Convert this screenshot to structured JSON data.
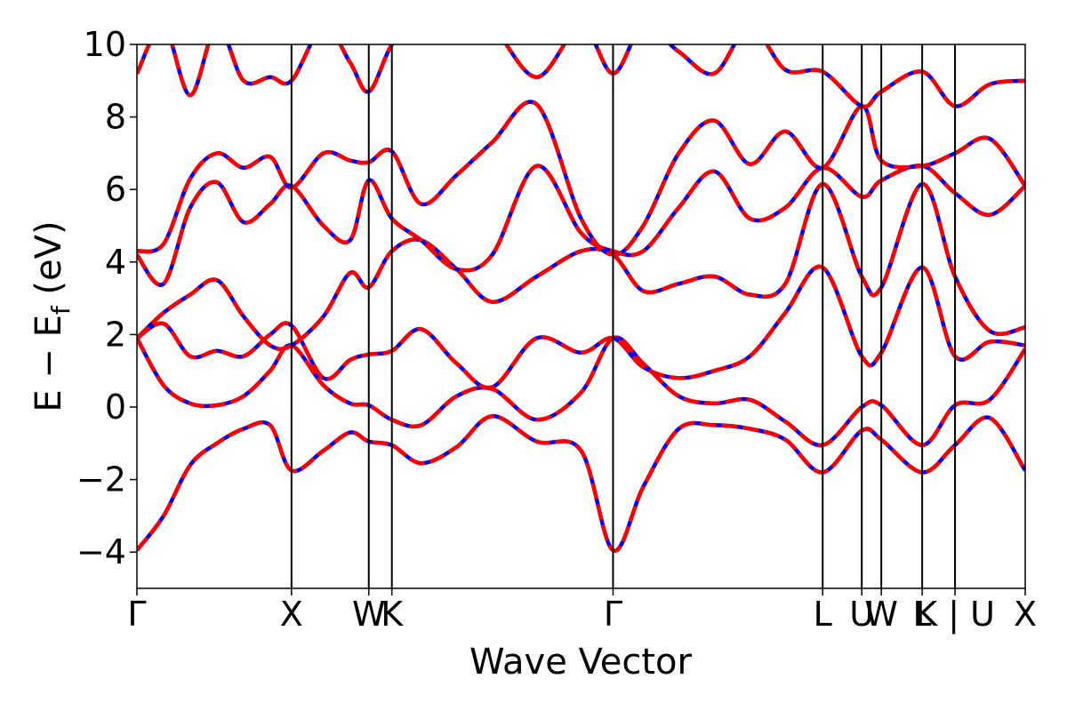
{
  "chart_data": {
    "type": "line",
    "xlabel": "Wave Vector",
    "ylabel_main": "E − E",
    "ylabel_sub": "f",
    "ylabel_unit": " (eV)",
    "ylim": [
      -5,
      10
    ],
    "yticks": [
      -4,
      -2,
      0,
      2,
      4,
      6,
      8,
      10
    ],
    "yticks_labels": [
      "−4",
      "−2",
      "0",
      "2",
      "4",
      "6",
      "8",
      "10"
    ],
    "xlim": [
      0,
      1
    ],
    "kpoints": [
      {
        "label": "Γ",
        "x": 0.0
      },
      {
        "label": "X",
        "x": 0.174
      },
      {
        "label": "W",
        "x": 0.261
      },
      {
        "label": "K",
        "x": 0.287
      },
      {
        "label": "Γ",
        "x": 0.536
      },
      {
        "label": "L",
        "x": 0.772
      },
      {
        "label": "U",
        "x": 0.816
      },
      {
        "label": "W",
        "x": 0.838
      },
      {
        "label": "L",
        "x": 0.884
      },
      {
        "label": "K | U",
        "x": 0.921
      },
      {
        "label": "X",
        "x": 1.0
      }
    ],
    "style": {
      "line_color_a": "#ff0000",
      "line_color_b": "#0000ff"
    },
    "bands": [
      {
        "x": [
          0,
          0.03,
          0.06,
          0.09,
          0.12,
          0.15,
          0.174,
          0.21,
          0.24,
          0.261,
          0.287,
          0.32,
          0.36,
          0.4,
          0.45,
          0.5,
          0.536,
          0.57,
          0.61,
          0.65,
          0.69,
          0.73,
          0.772,
          0.816,
          0.838,
          0.884,
          0.921,
          0.96,
          1.0
        ],
        "y": [
          -3.95,
          -3.0,
          -1.6,
          -1.0,
          -0.6,
          -0.5,
          -1.75,
          -1.2,
          -0.7,
          -0.95,
          -1.05,
          -1.55,
          -1.1,
          -0.25,
          -0.95,
          -1.2,
          -3.95,
          -2.2,
          -0.6,
          -0.5,
          -0.6,
          -0.9,
          -1.8,
          -0.65,
          -0.9,
          -1.8,
          -1.05,
          -0.3,
          -1.75
        ]
      },
      {
        "x": [
          0,
          0.03,
          0.06,
          0.09,
          0.12,
          0.15,
          0.174,
          0.21,
          0.24,
          0.261,
          0.287,
          0.32,
          0.36,
          0.4,
          0.45,
          0.5,
          0.536,
          0.57,
          0.61,
          0.65,
          0.69,
          0.73,
          0.772,
          0.816,
          0.838,
          0.884,
          0.921,
          0.96,
          1.0
        ],
        "y": [
          1.9,
          0.6,
          0.1,
          0.05,
          0.3,
          1.0,
          1.7,
          0.6,
          0.1,
          0.05,
          -0.35,
          -0.5,
          0.3,
          0.5,
          -0.35,
          0.4,
          1.9,
          1.2,
          0.3,
          0.1,
          0.2,
          -0.4,
          -1.05,
          0.0,
          0.05,
          -1.05,
          0.05,
          0.2,
          1.6
        ]
      },
      {
        "x": [
          0,
          0.03,
          0.06,
          0.09,
          0.12,
          0.15,
          0.174,
          0.21,
          0.24,
          0.261,
          0.287,
          0.32,
          0.36,
          0.4,
          0.45,
          0.5,
          0.536,
          0.57,
          0.61,
          0.65,
          0.69,
          0.73,
          0.772,
          0.816,
          0.838,
          0.884,
          0.921,
          0.96,
          1.0
        ],
        "y": [
          1.9,
          2.3,
          1.4,
          1.55,
          1.4,
          2.0,
          2.25,
          0.8,
          1.3,
          1.45,
          1.55,
          2.15,
          1.2,
          0.55,
          1.9,
          1.5,
          1.9,
          1.1,
          0.8,
          1.0,
          1.4,
          2.6,
          3.85,
          1.4,
          1.5,
          3.85,
          1.4,
          1.8,
          1.7
        ]
      },
      {
        "x": [
          0,
          0.03,
          0.06,
          0.09,
          0.12,
          0.15,
          0.174,
          0.21,
          0.24,
          0.261,
          0.287,
          0.32,
          0.36,
          0.4,
          0.45,
          0.5,
          0.536,
          0.57,
          0.61,
          0.65,
          0.69,
          0.73,
          0.772,
          0.816,
          0.838,
          0.884,
          0.921,
          0.96,
          1.0
        ],
        "y": [
          1.9,
          2.6,
          3.1,
          3.5,
          2.5,
          1.7,
          1.7,
          2.5,
          3.7,
          3.3,
          4.3,
          4.6,
          3.8,
          2.9,
          3.6,
          4.3,
          4.2,
          3.2,
          3.4,
          3.6,
          3.1,
          3.4,
          6.15,
          3.6,
          3.3,
          6.15,
          3.6,
          2.1,
          2.2
        ]
      },
      {
        "x": [
          0,
          0.03,
          0.06,
          0.09,
          0.12,
          0.15,
          0.174,
          0.21,
          0.24,
          0.261,
          0.287,
          0.32,
          0.36,
          0.4,
          0.45,
          0.5,
          0.536,
          0.57,
          0.61,
          0.65,
          0.69,
          0.73,
          0.772,
          0.816,
          0.838,
          0.884,
          0.921,
          0.96,
          1.0
        ],
        "y": [
          4.2,
          3.4,
          5.5,
          6.2,
          5.1,
          5.6,
          6.1,
          5.0,
          4.6,
          6.25,
          5.2,
          4.6,
          3.8,
          4.2,
          6.65,
          4.8,
          4.3,
          4.3,
          5.5,
          6.5,
          5.2,
          5.5,
          6.6,
          5.8,
          6.25,
          6.65,
          5.9,
          5.3,
          6.1
        ]
      },
      {
        "x": [
          0,
          0.03,
          0.06,
          0.09,
          0.12,
          0.15,
          0.174,
          0.21,
          0.24,
          0.261,
          0.287,
          0.32,
          0.36,
          0.4,
          0.45,
          0.5,
          0.536,
          0.57,
          0.61,
          0.65,
          0.69,
          0.73,
          0.772,
          0.816,
          0.838,
          0.884,
          0.921,
          0.96,
          1.0
        ],
        "y": [
          4.3,
          4.5,
          6.3,
          7.0,
          6.6,
          6.9,
          6.05,
          7.0,
          6.8,
          6.75,
          7.05,
          5.6,
          6.4,
          7.3,
          8.35,
          5.2,
          4.2,
          5.0,
          7.0,
          7.9,
          6.7,
          7.6,
          6.6,
          8.3,
          6.8,
          6.65,
          7.0,
          7.4,
          6.1
        ]
      },
      {
        "x": [
          0,
          0.03,
          0.06,
          0.09,
          0.12,
          0.15,
          0.174,
          0.21,
          0.24,
          0.261,
          0.287,
          0.32,
          0.36,
          0.4,
          0.45,
          0.5,
          0.536,
          0.57,
          0.61,
          0.65,
          0.69,
          0.73,
          0.772,
          0.816,
          0.838,
          0.884,
          0.921,
          0.96,
          1.0
        ],
        "y": [
          9.2,
          10.5,
          8.6,
          10.5,
          9.0,
          9.1,
          9.0,
          10.5,
          9.5,
          8.7,
          10.0,
          11,
          11,
          10.5,
          9.1,
          10.5,
          9.2,
          10.5,
          9.8,
          9.2,
          10.5,
          9.3,
          9.25,
          8.3,
          8.7,
          9.25,
          8.3,
          8.9,
          9.0
        ]
      }
    ]
  }
}
